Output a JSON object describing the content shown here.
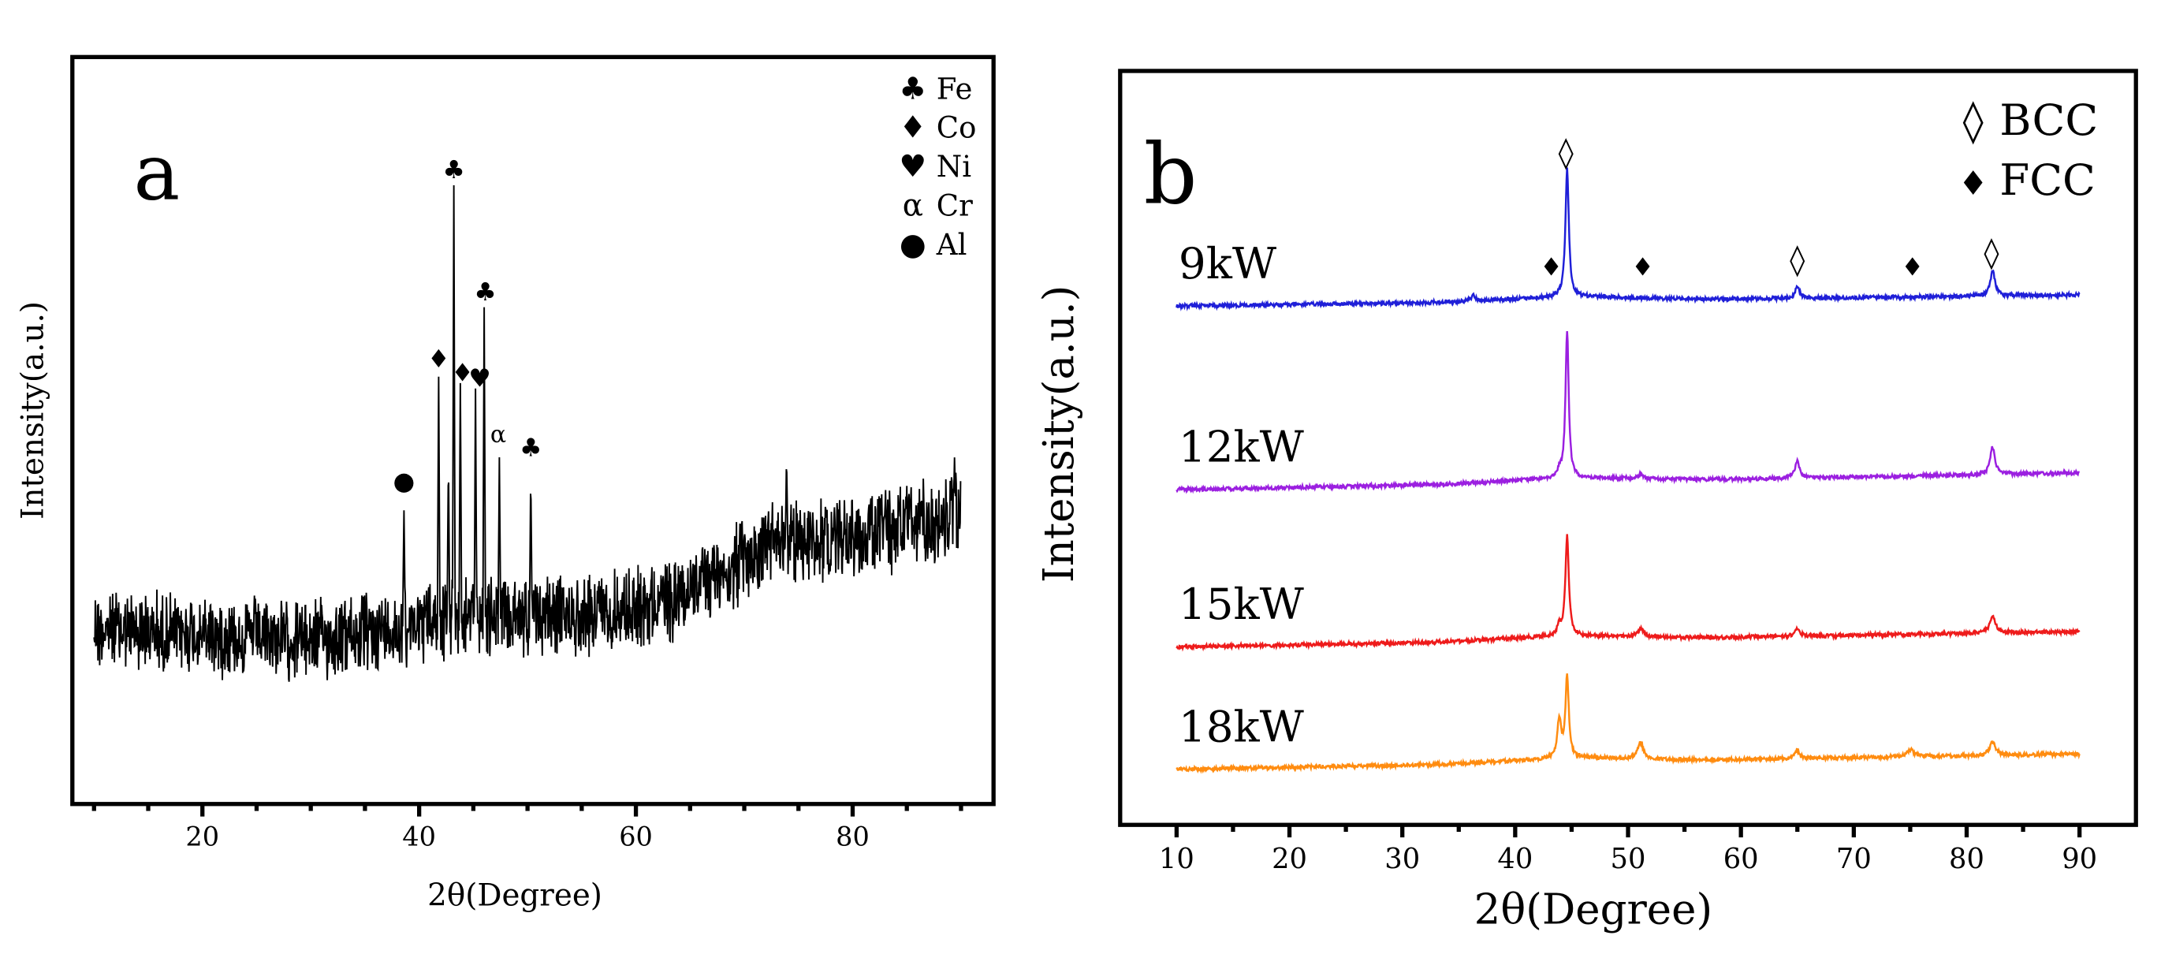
{
  "chart_data": [
    {
      "id": "a",
      "type": "line",
      "panel_label": "a",
      "xlabel": "2θ(Degree)",
      "ylabel": "Intensity(a.u.)",
      "xlim": [
        8,
        93
      ],
      "xticks": [
        20,
        40,
        60,
        80
      ],
      "x_range": [
        10,
        90
      ],
      "series_color": "#000000",
      "baseline_points": [
        [
          10,
          452
        ],
        [
          30,
          460
        ],
        [
          38,
          452
        ],
        [
          41,
          446
        ],
        [
          55,
          442
        ],
        [
          63,
          432
        ],
        [
          70,
          405
        ],
        [
          73,
          390
        ],
        [
          80,
          385
        ],
        [
          88,
          375
        ],
        [
          89.5,
          370
        ]
      ],
      "peaks": [
        {
          "x": 38.6,
          "y": 365
        },
        {
          "x": 41.8,
          "y": 270
        },
        {
          "x": 42.7,
          "y": 330
        },
        {
          "x": 43.2,
          "y": 135
        },
        {
          "x": 43.8,
          "y": 275
        },
        {
          "x": 45.2,
          "y": 280
        },
        {
          "x": 46.0,
          "y": 220
        },
        {
          "x": 47.4,
          "y": 330
        },
        {
          "x": 50.3,
          "y": 340
        },
        {
          "x": 73.9,
          "y": 330
        },
        {
          "x": 89.4,
          "y": 330
        }
      ],
      "legend": [
        {
          "symbol": "♣",
          "label": "Fe"
        },
        {
          "symbol": "♦",
          "label": "Co"
        },
        {
          "symbol": "♥",
          "label": "Ni"
        },
        {
          "symbol": "α",
          "label": "Cr"
        },
        {
          "symbol": "●",
          "label": "Al"
        }
      ],
      "peak_markers": [
        {
          "symbol": "●",
          "x": 38.6,
          "y": 352
        },
        {
          "symbol": "♦",
          "x": 41.8,
          "y": 264
        },
        {
          "symbol": "♣",
          "x": 43.2,
          "y": 128
        },
        {
          "symbol": "♦",
          "x": 44.0,
          "y": 274
        },
        {
          "symbol": "♥",
          "x": 45.6,
          "y": 278
        },
        {
          "symbol": "♣",
          "x": 46.1,
          "y": 216
        },
        {
          "symbol": "α",
          "x": 47.3,
          "y": 318
        },
        {
          "symbol": "♣",
          "x": 50.3,
          "y": 328
        }
      ]
    },
    {
      "id": "b",
      "type": "line",
      "panel_label": "b",
      "xlabel": "2θ(Degree)",
      "ylabel": "Intensity(a.u.)",
      "xlim": [
        5,
        95
      ],
      "xticks": [
        10,
        20,
        30,
        40,
        50,
        60,
        70,
        80,
        90
      ],
      "x_range": [
        10,
        90
      ],
      "legend": [
        {
          "symbol": "◊",
          "label": "BCC"
        },
        {
          "symbol": "♦",
          "label": "FCC"
        }
      ],
      "series": [
        {
          "name": "9kW",
          "color": "#1f1fd8",
          "base_start": 220,
          "base_end": 212,
          "peaks": [
            {
              "x": 36.3,
              "h": 4,
              "w": 0.25
            },
            {
              "x": 44.6,
              "h": 92,
              "w": 0.18
            },
            {
              "x": 65.0,
              "h": 8,
              "w": 0.25
            },
            {
              "x": 82.3,
              "h": 18,
              "w": 0.25
            }
          ]
        },
        {
          "name": "12kW",
          "color": "#9b1fe0",
          "base_start": 352,
          "base_end": 340,
          "peaks": [
            {
              "x": 43.9,
              "h": 5,
              "w": 0.2
            },
            {
              "x": 44.6,
              "h": 106,
              "w": 0.17
            },
            {
              "x": 51.1,
              "h": 3,
              "w": 0.3
            },
            {
              "x": 65.0,
              "h": 12,
              "w": 0.25
            },
            {
              "x": 82.3,
              "h": 20,
              "w": 0.25
            }
          ]
        },
        {
          "name": "15kW",
          "color": "#ee1b1b",
          "base_start": 465,
          "base_end": 454,
          "peaks": [
            {
              "x": 43.9,
              "h": 7,
              "w": 0.2
            },
            {
              "x": 44.6,
              "h": 72,
              "w": 0.18
            },
            {
              "x": 51.1,
              "h": 6,
              "w": 0.3
            },
            {
              "x": 65.0,
              "h": 6,
              "w": 0.25
            },
            {
              "x": 82.3,
              "h": 12,
              "w": 0.3
            }
          ]
        },
        {
          "name": "18kW",
          "color": "#ff8c10",
          "base_start": 553,
          "base_end": 542,
          "peaks": [
            {
              "x": 43.9,
              "h": 28,
              "w": 0.2
            },
            {
              "x": 44.6,
              "h": 58,
              "w": 0.18
            },
            {
              "x": 51.1,
              "h": 12,
              "w": 0.3
            },
            {
              "x": 65.0,
              "h": 6,
              "w": 0.25
            },
            {
              "x": 75.0,
              "h": 5,
              "w": 0.4
            },
            {
              "x": 82.3,
              "h": 10,
              "w": 0.3
            }
          ]
        }
      ],
      "peak_markers": [
        {
          "symbol": "◊",
          "x": 44.5,
          "y": 117
        },
        {
          "symbol": "◊",
          "x": 65.0,
          "y": 194
        },
        {
          "symbol": "◊",
          "x": 82.2,
          "y": 189
        },
        {
          "symbol": "♦",
          "x": 43.2,
          "y": 198
        },
        {
          "symbol": "♦",
          "x": 51.3,
          "y": 198
        },
        {
          "symbol": "♦",
          "x": 75.2,
          "y": 198
        }
      ]
    }
  ]
}
